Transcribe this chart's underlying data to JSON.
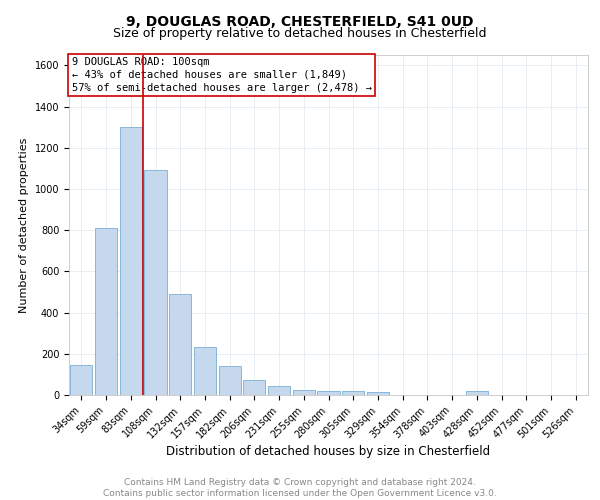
{
  "title1": "9, DOUGLAS ROAD, CHESTERFIELD, S41 0UD",
  "title2": "Size of property relative to detached houses in Chesterfield",
  "xlabel": "Distribution of detached houses by size in Chesterfield",
  "ylabel": "Number of detached properties",
  "categories": [
    "34sqm",
    "59sqm",
    "83sqm",
    "108sqm",
    "132sqm",
    "157sqm",
    "182sqm",
    "206sqm",
    "231sqm",
    "255sqm",
    "280sqm",
    "305sqm",
    "329sqm",
    "354sqm",
    "378sqm",
    "403sqm",
    "428sqm",
    "452sqm",
    "477sqm",
    "501sqm",
    "526sqm"
  ],
  "values": [
    145,
    810,
    1300,
    1090,
    490,
    235,
    140,
    75,
    45,
    25,
    20,
    20,
    15,
    0,
    0,
    0,
    20,
    0,
    0,
    0,
    0
  ],
  "bar_color": "#c5d8ee",
  "bar_edge_color": "#7aafd4",
  "grid_color": "#dde7f0",
  "vline_color": "#cc0000",
  "vline_x": 2.5,
  "annotation_title": "9 DOUGLAS ROAD: 100sqm",
  "annotation_line1": "← 43% of detached houses are smaller (1,849)",
  "annotation_line2": "57% of semi-detached houses are larger (2,478) →",
  "annotation_box_color": "#cc0000",
  "ylim": [
    0,
    1650
  ],
  "yticks": [
    0,
    200,
    400,
    600,
    800,
    1000,
    1200,
    1400,
    1600
  ],
  "footer": "Contains HM Land Registry data © Crown copyright and database right 2024.\nContains public sector information licensed under the Open Government Licence v3.0.",
  "title1_fontsize": 10,
  "title2_fontsize": 9,
  "xlabel_fontsize": 8.5,
  "ylabel_fontsize": 8,
  "tick_fontsize": 7,
  "annotation_fontsize": 7.5,
  "footer_fontsize": 6.5
}
